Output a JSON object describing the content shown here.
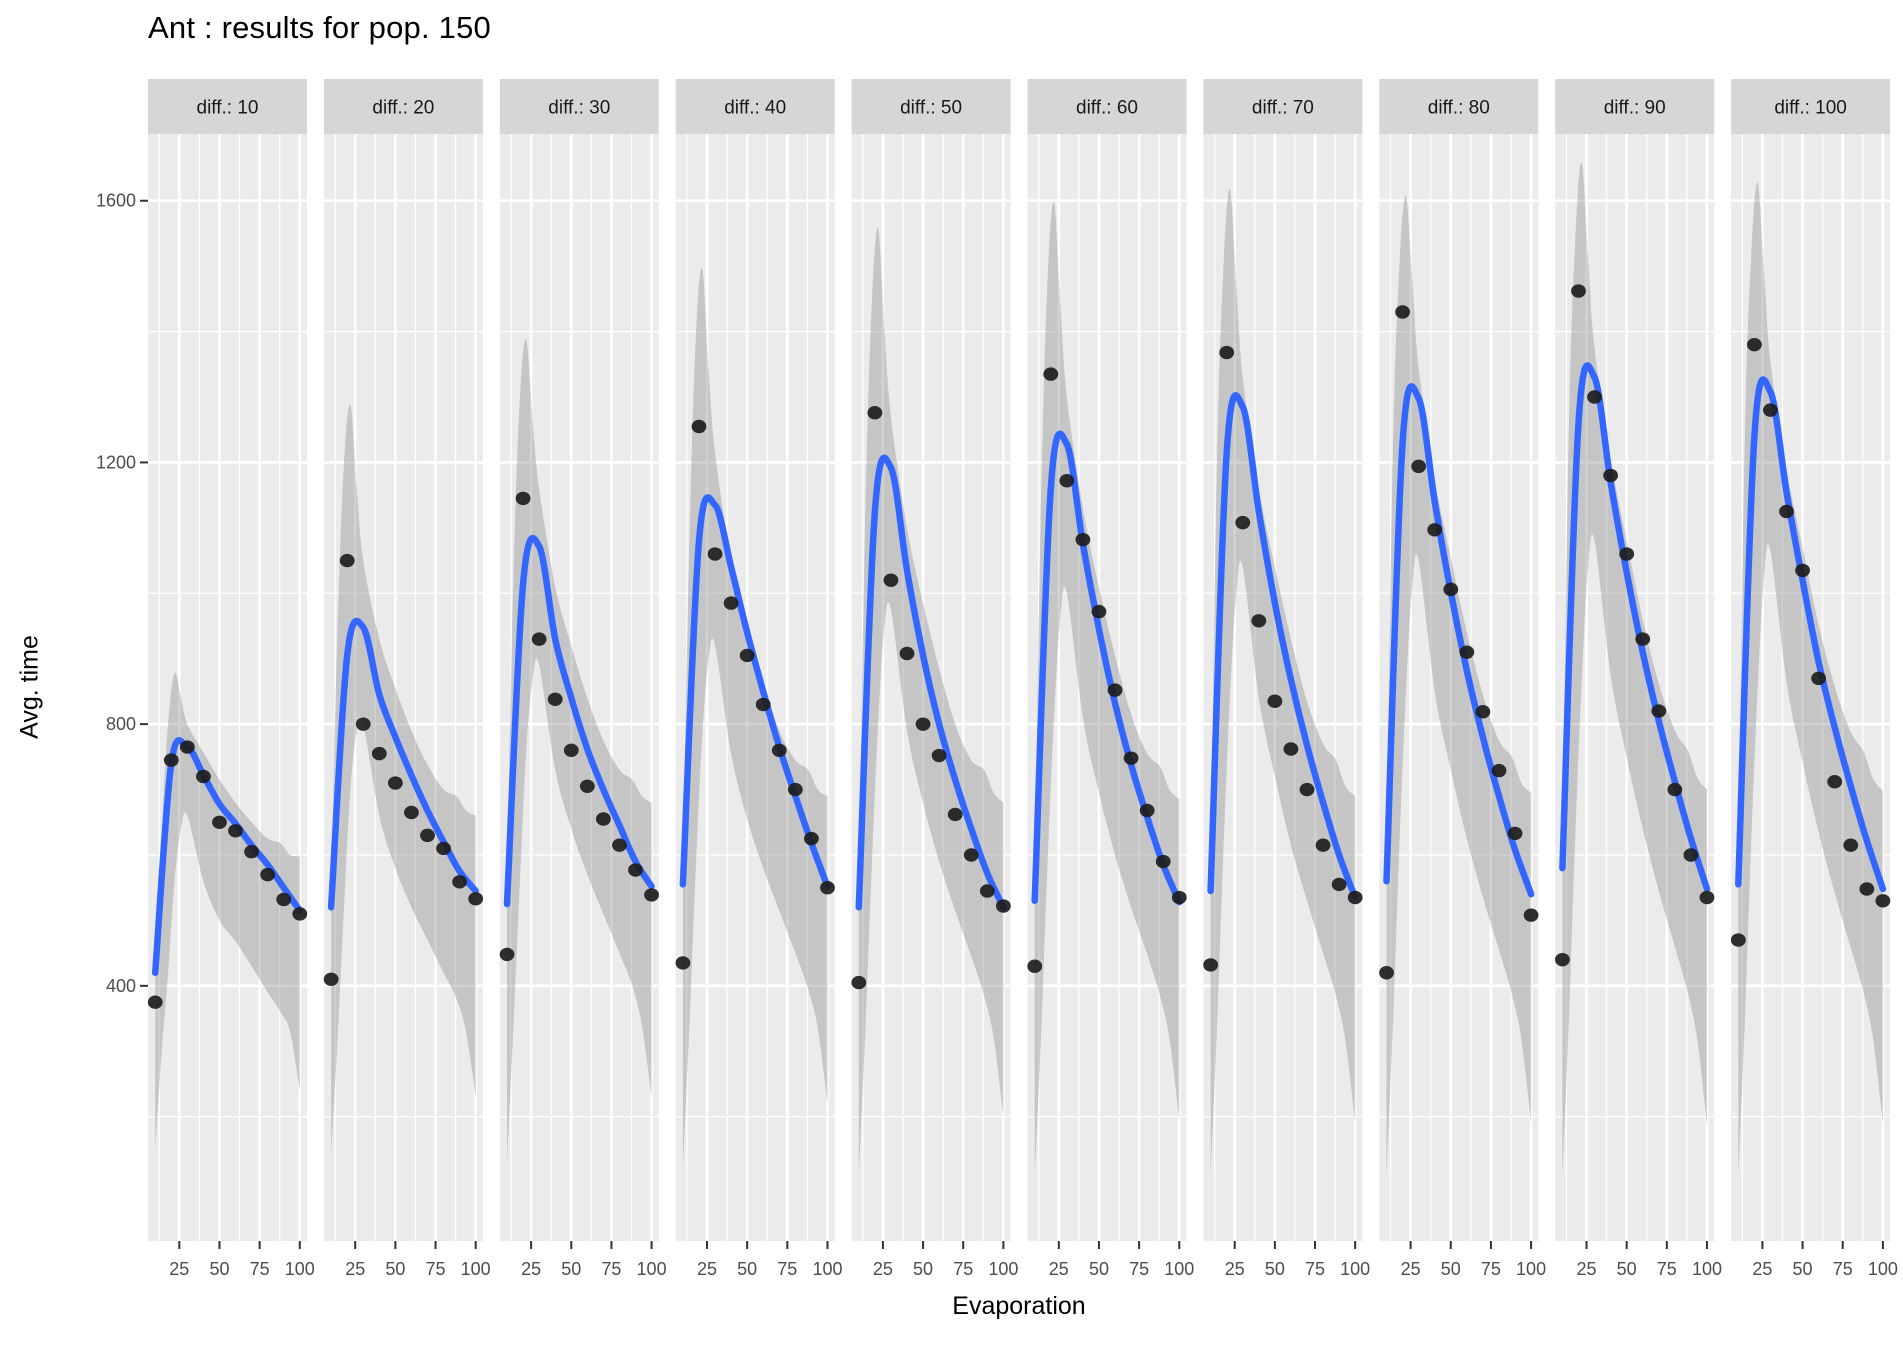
{
  "title": "Ant : results for pop. 150",
  "axes": {
    "x_title": "Evaporation",
    "y_title": "Avg. time",
    "x_tick_labels": [
      "25",
      "50",
      "75",
      "100"
    ],
    "y_tick_labels": [
      "400",
      "800",
      "1200",
      "1600"
    ]
  },
  "colors": {
    "panel_background": "#ebebeb",
    "grid_line": "#ffffff",
    "strip_background": "#d6d6d6",
    "strip_text": "#1a1a1a",
    "axis_text": "#4d4d4d",
    "tick_mark": "#333333",
    "smooth_line": "#3366FF",
    "ribbon_fill": "rgba(145,145,145,0.42)",
    "point_fill": "#1d1d1d"
  },
  "chart_data": {
    "type": "line",
    "title": "Ant : results for pop. 150",
    "xlabel": "Evaporation",
    "ylabel": "Avg. time",
    "facet_variable": "diff.",
    "x": [
      10,
      20,
      30,
      40,
      50,
      60,
      70,
      80,
      90,
      100
    ],
    "x_ticks": [
      25,
      50,
      75,
      100
    ],
    "y_ticks": [
      400,
      800,
      1200,
      1600
    ],
    "x_minor_ticks": [
      12.5,
      37.5,
      62.5,
      87.5
    ],
    "y_minor_ticks": [
      200,
      600,
      1000,
      1400
    ],
    "x_domain": [
      5.5,
      104.5
    ],
    "y_domain": [
      10,
      1702
    ],
    "ribbon_x": [
      10,
      14,
      18,
      22,
      26,
      30,
      40,
      50,
      60,
      70,
      80,
      88,
      94,
      100
    ],
    "facets": [
      {
        "label": "diff.: 10",
        "diff": 10,
        "points": [
          375,
          745,
          765,
          720,
          650,
          637,
          605,
          570,
          532,
          510
        ],
        "smooth": [
          420,
          740,
          765,
          722,
          678,
          648,
          615,
          585,
          550,
          515
        ],
        "ribbon_upper": [
          450,
          640,
          800,
          878,
          840,
          800,
          757,
          715,
          680,
          650,
          625,
          618,
          600,
          598
        ],
        "ribbon_lower": [
          150,
          300,
          420,
          560,
          640,
          660,
          560,
          500,
          468,
          430,
          390,
          360,
          330,
          240
        ]
      },
      {
        "label": "diff.: 20",
        "diff": 20,
        "points": [
          410,
          1050,
          800,
          755,
          710,
          665,
          630,
          610,
          559,
          533
        ],
        "smooth": [
          520,
          905,
          948,
          845,
          780,
          722,
          668,
          620,
          575,
          545
        ],
        "ribbon_upper": [
          560,
          950,
          1200,
          1288,
          1160,
          1050,
          930,
          855,
          790,
          738,
          700,
          690,
          668,
          660
        ],
        "ribbon_lower": [
          140,
          320,
          520,
          700,
          790,
          800,
          660,
          580,
          520,
          470,
          420,
          380,
          330,
          230
        ]
      },
      {
        "label": "diff.: 30",
        "diff": 30,
        "points": [
          448,
          1145,
          930,
          838,
          760,
          705,
          655,
          615,
          577,
          539
        ],
        "smooth": [
          525,
          1015,
          1072,
          930,
          840,
          762,
          700,
          645,
          590,
          552
        ],
        "ribbon_upper": [
          570,
          1030,
          1300,
          1388,
          1260,
          1160,
          1010,
          920,
          840,
          775,
          730,
          715,
          690,
          680
        ],
        "ribbon_lower": [
          130,
          340,
          560,
          760,
          870,
          890,
          730,
          640,
          570,
          510,
          450,
          400,
          340,
          230
        ]
      },
      {
        "label": "diff.: 40",
        "diff": 40,
        "points": [
          435,
          1255,
          1060,
          985,
          905,
          830,
          760,
          700,
          625,
          550
        ],
        "smooth": [
          555,
          1080,
          1135,
          1040,
          940,
          850,
          765,
          690,
          618,
          552
        ],
        "ribbon_upper": [
          600,
          1080,
          1390,
          1496,
          1340,
          1215,
          1050,
          950,
          860,
          790,
          745,
          730,
          700,
          690
        ],
        "ribbon_lower": [
          120,
          340,
          580,
          780,
          900,
          920,
          755,
          655,
          580,
          515,
          450,
          395,
          335,
          220
        ]
      },
      {
        "label": "diff.: 50",
        "diff": 50,
        "points": [
          405,
          1276,
          1020,
          908,
          800,
          752,
          662,
          600,
          545,
          522
        ],
        "smooth": [
          520,
          1125,
          1192,
          1035,
          905,
          800,
          715,
          640,
          572,
          520
        ],
        "ribbon_upper": [
          570,
          1120,
          1440,
          1558,
          1400,
          1270,
          1100,
          985,
          885,
          800,
          745,
          730,
          695,
          680
        ],
        "ribbon_lower": [
          110,
          330,
          580,
          800,
          950,
          975,
          790,
          680,
          590,
          515,
          445,
          385,
          320,
          200
        ]
      },
      {
        "label": "diff.: 60",
        "diff": 60,
        "points": [
          430,
          1335,
          1172,
          1082,
          972,
          852,
          748,
          668,
          590,
          535
        ],
        "smooth": [
          530,
          1160,
          1228,
          1075,
          945,
          832,
          738,
          658,
          585,
          528
        ],
        "ribbon_upper": [
          580,
          1150,
          1480,
          1598,
          1440,
          1300,
          1130,
          1010,
          905,
          815,
          755,
          735,
          700,
          685
        ],
        "ribbon_lower": [
          110,
          330,
          590,
          810,
          965,
          1000,
          810,
          695,
          600,
          520,
          448,
          385,
          318,
          195
        ]
      },
      {
        "label": "diff.: 70",
        "diff": 70,
        "points": [
          432,
          1368,
          1108,
          958,
          835,
          762,
          700,
          615,
          555,
          535
        ],
        "smooth": [
          545,
          1215,
          1285,
          1125,
          985,
          868,
          768,
          680,
          600,
          535
        ],
        "ribbon_upper": [
          595,
          1210,
          1500,
          1618,
          1470,
          1330,
          1160,
          1040,
          930,
          835,
          770,
          745,
          705,
          690
        ],
        "ribbon_lower": [
          110,
          340,
          610,
          840,
          1000,
          1040,
          840,
          720,
          615,
          530,
          450,
          385,
          315,
          190
        ]
      },
      {
        "label": "diff.: 80",
        "diff": 80,
        "points": [
          420,
          1430,
          1194,
          1097,
          1006,
          910,
          819,
          729,
          633,
          508
        ],
        "smooth": [
          560,
          1230,
          1298,
          1140,
          1002,
          882,
          780,
          690,
          608,
          540
        ],
        "ribbon_upper": [
          610,
          1225,
          1500,
          1608,
          1480,
          1345,
          1175,
          1055,
          940,
          845,
          775,
          750,
          710,
          695
        ],
        "ribbon_lower": [
          110,
          345,
          615,
          845,
          1010,
          1050,
          850,
          730,
          625,
          535,
          455,
          388,
          318,
          190
        ]
      },
      {
        "label": "diff.: 90",
        "diff": 90,
        "points": [
          440,
          1462,
          1300,
          1180,
          1060,
          930,
          820,
          700,
          600,
          535
        ],
        "smooth": [
          580,
          1260,
          1330,
          1170,
          1032,
          910,
          805,
          712,
          625,
          548
        ],
        "ribbon_upper": [
          630,
          1255,
          1540,
          1658,
          1510,
          1375,
          1205,
          1080,
          960,
          862,
          790,
          760,
          718,
          700
        ],
        "ribbon_lower": [
          110,
          350,
          630,
          865,
          1040,
          1080,
          875,
          750,
          640,
          545,
          460,
          390,
          318,
          188
        ]
      },
      {
        "label": "diff.: 100",
        "diff": 100,
        "points": [
          470,
          1380,
          1280,
          1125,
          1035,
          870,
          712,
          615,
          548,
          530
        ],
        "smooth": [
          555,
          1240,
          1308,
          1155,
          1020,
          895,
          795,
          705,
          622,
          548
        ],
        "ribbon_upper": [
          605,
          1235,
          1515,
          1628,
          1490,
          1355,
          1190,
          1070,
          952,
          858,
          788,
          758,
          716,
          698
        ],
        "ribbon_lower": [
          110,
          345,
          620,
          852,
          1025,
          1065,
          865,
          742,
          635,
          542,
          458,
          390,
          318,
          190
        ]
      }
    ]
  }
}
